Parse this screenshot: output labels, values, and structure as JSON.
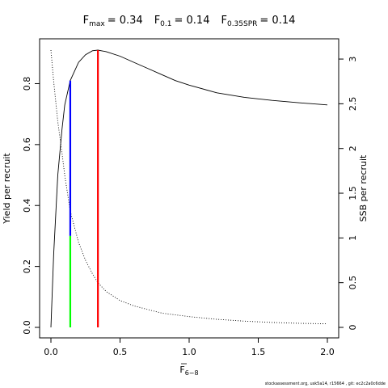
{
  "chart_data": {
    "type": "line",
    "title_parts": {
      "fmax_sym": "F",
      "fmax_sub": "max",
      "fmax_val": "= 0.34",
      "f01_sym": "F",
      "f01_sub": "0.1",
      "f01_val": "= 0.14",
      "fspr_sym": "F",
      "fspr_sub": "0.35SPR",
      "fspr_val": "= 0.14"
    },
    "xlabel": {
      "sym": "F",
      "sub": "6−8"
    },
    "ylabel_left": "Yield per recruit",
    "ylabel_right": "SSB per recruit",
    "xlim": [
      0,
      2
    ],
    "ylim_left": [
      0,
      0.91
    ],
    "ylim_right": [
      0,
      3.1
    ],
    "x_ticks": [
      0,
      0.5,
      1,
      1.5,
      2
    ],
    "x_tick_labels": [
      "0.0",
      "0.5",
      "1.0",
      "1.5",
      "2.0"
    ],
    "y_left_ticks": [
      0,
      0.2,
      0.4,
      0.6,
      0.8
    ],
    "y_left_tick_labels": [
      "0.0",
      "0.2",
      "0.4",
      "0.6",
      "0.8"
    ],
    "y_right_ticks": [
      0,
      0.5,
      1,
      1.5,
      2,
      2.5,
      3
    ],
    "y_right_tick_labels": [
      "0",
      "0.5",
      "1",
      "1.5",
      "2",
      "2.5",
      "3"
    ],
    "series": [
      {
        "axis": "left",
        "style": "solid",
        "color": "#000000",
        "x": [
          0,
          0.02,
          0.05,
          0.08,
          0.1,
          0.14,
          0.2,
          0.25,
          0.3,
          0.34,
          0.4,
          0.5,
          0.6,
          0.7,
          0.8,
          0.9,
          1.0,
          1.2,
          1.4,
          1.6,
          1.8,
          2.0
        ],
        "y": [
          0,
          0.24,
          0.5,
          0.65,
          0.73,
          0.81,
          0.87,
          0.895,
          0.908,
          0.91,
          0.905,
          0.89,
          0.87,
          0.85,
          0.83,
          0.81,
          0.795,
          0.77,
          0.755,
          0.745,
          0.737,
          0.73
        ]
      },
      {
        "axis": "right",
        "style": "dotted",
        "color": "#000000",
        "x": [
          0,
          0.02,
          0.05,
          0.08,
          0.1,
          0.14,
          0.2,
          0.25,
          0.3,
          0.34,
          0.4,
          0.5,
          0.6,
          0.7,
          0.8,
          1.0,
          1.2,
          1.4,
          1.6,
          1.8,
          2.0
        ],
        "y": [
          3.1,
          2.75,
          2.3,
          1.95,
          1.7,
          1.3,
          0.95,
          0.75,
          0.6,
          0.5,
          0.4,
          0.3,
          0.24,
          0.2,
          0.16,
          0.12,
          0.09,
          0.07,
          0.055,
          0.045,
          0.04
        ]
      }
    ],
    "reference_lines": [
      {
        "name": "Fmax",
        "x": 0.34,
        "y_from": 0,
        "y_to": 0.91,
        "color": "#ff0000"
      },
      {
        "name": "F0.1",
        "x": 0.14,
        "y_from": 0.3,
        "y_to": 0.81,
        "color": "#0000ff"
      },
      {
        "name": "F0.35SPR",
        "x": 0.14,
        "y_from": 0,
        "y_to": 0.3,
        "color": "#00ff00"
      }
    ],
    "grid": false
  },
  "footer": "stockassessment.org, usk5a14, r15664 , git: ec2c2a0c6dde"
}
